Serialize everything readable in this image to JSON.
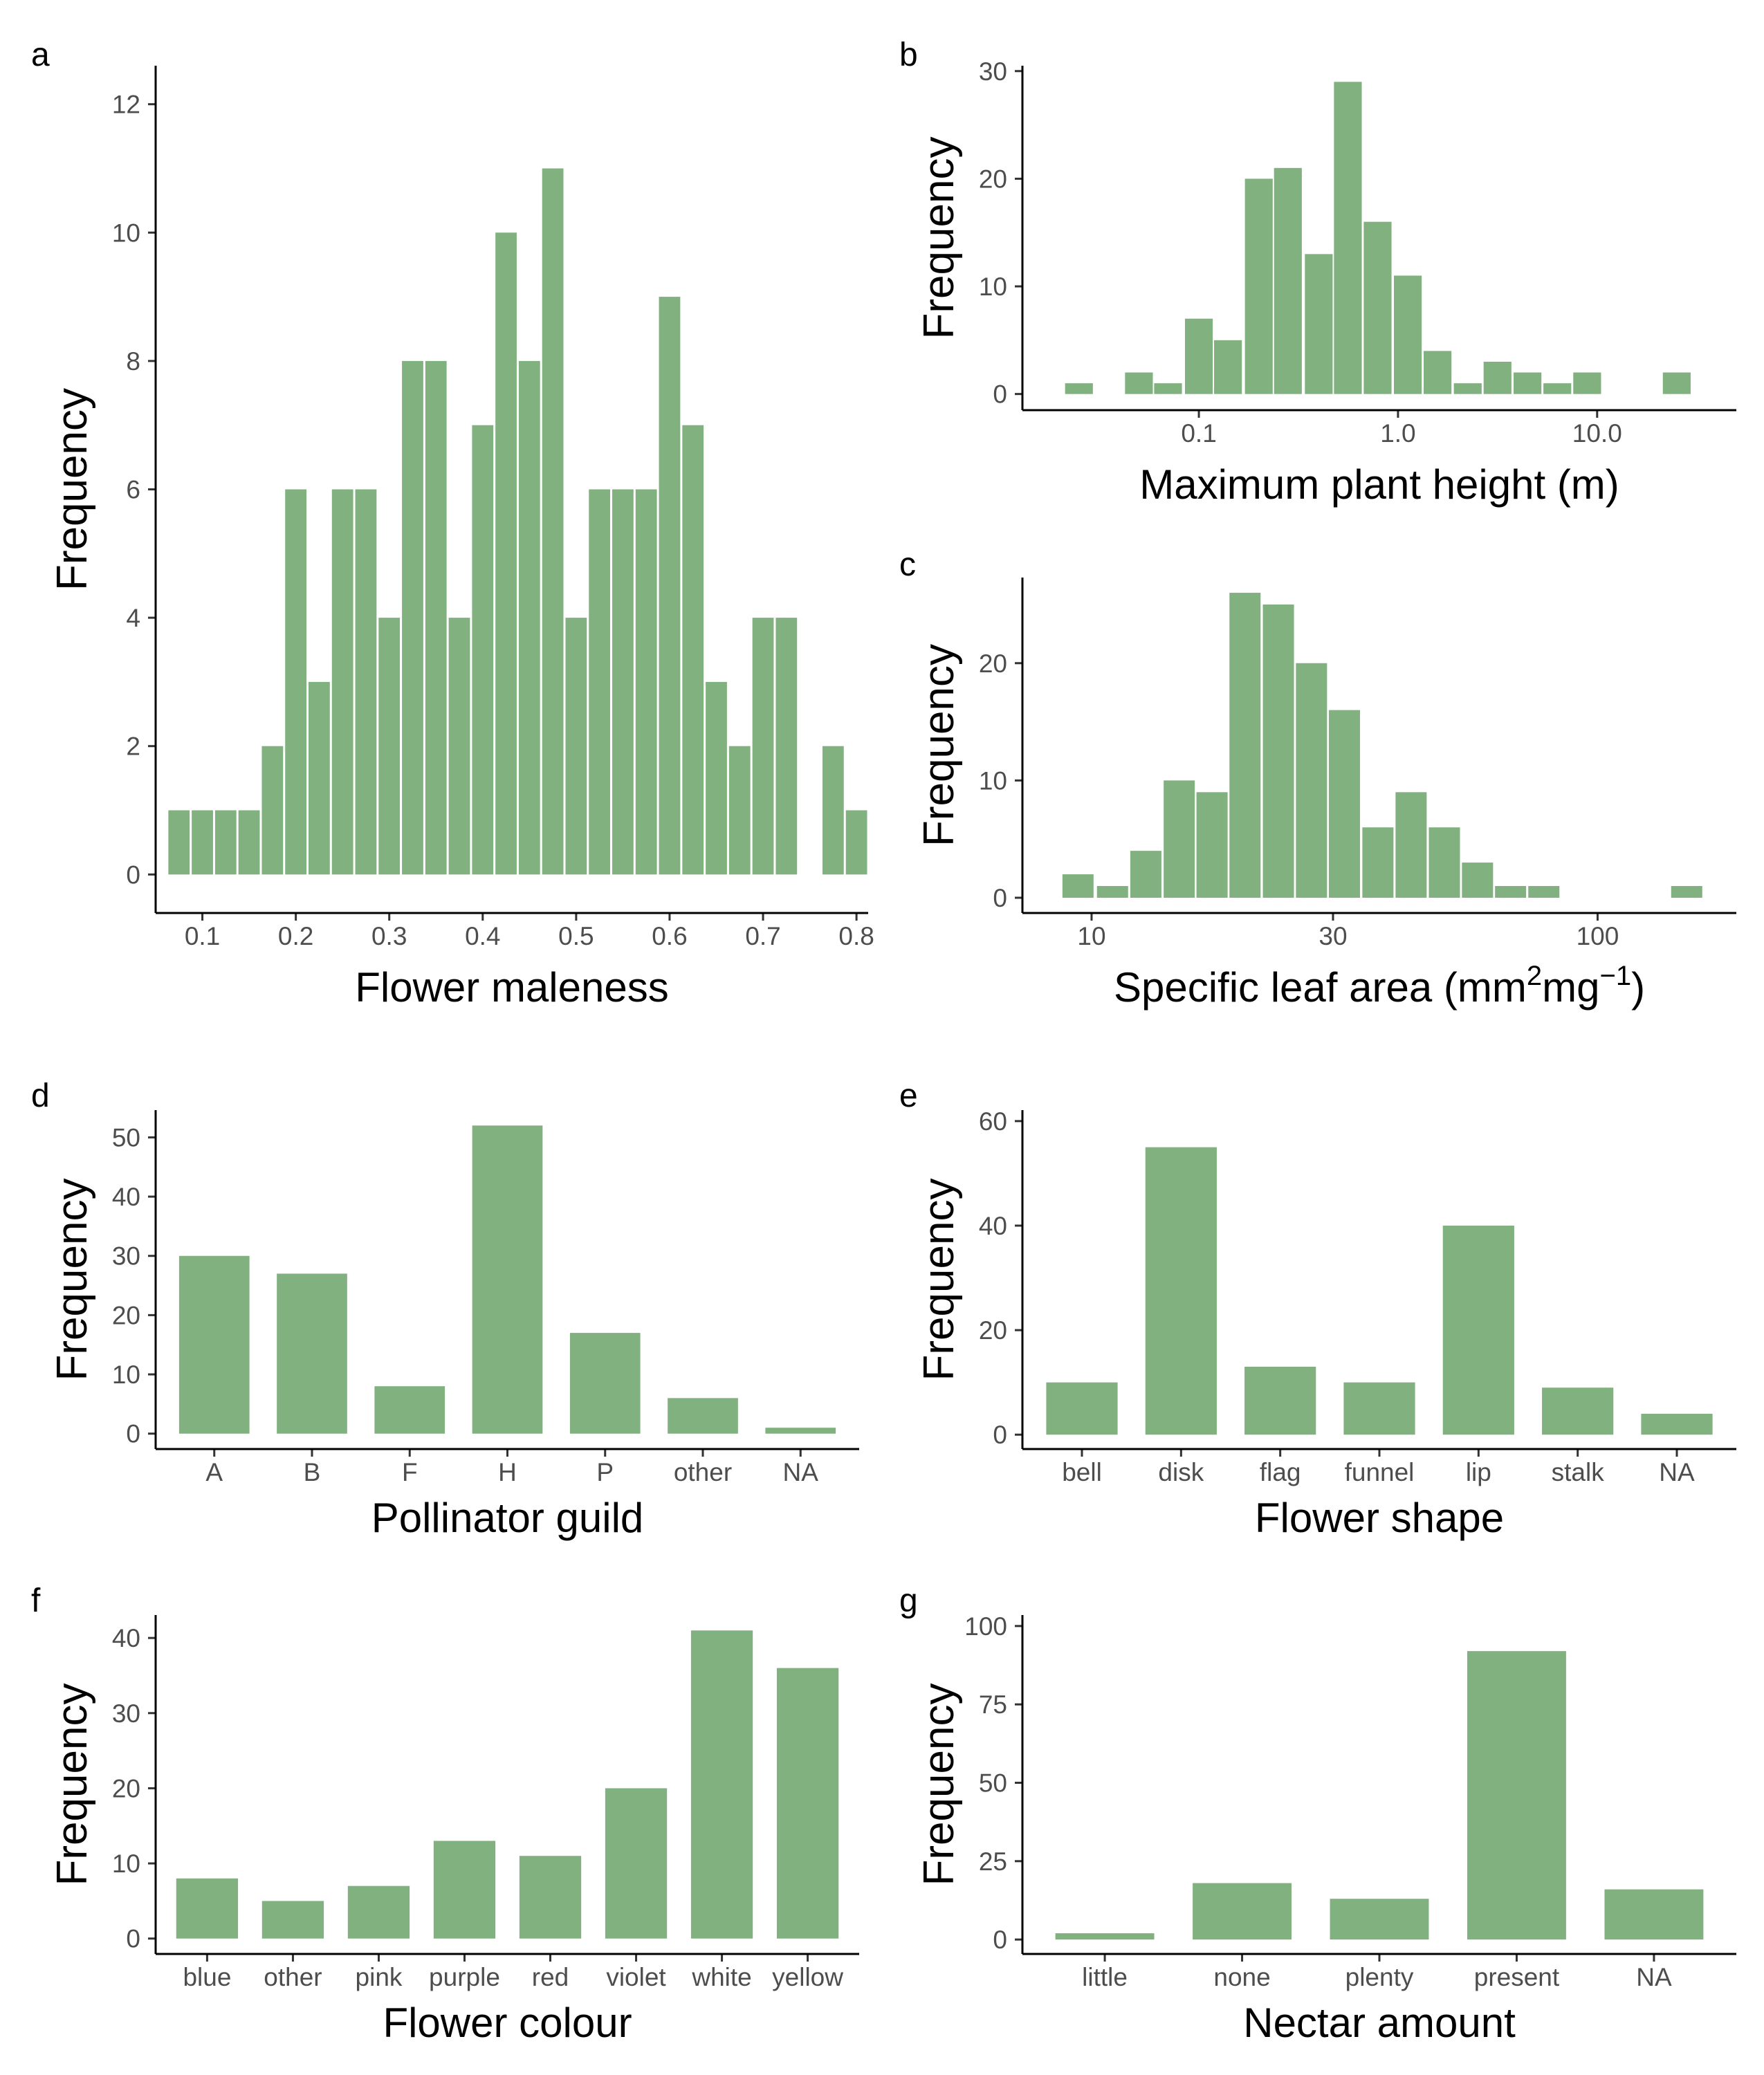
{
  "figure": {
    "bar_color": "#80B17F",
    "panels": [
      "a",
      "b",
      "c",
      "d",
      "e",
      "f",
      "g"
    ]
  },
  "chart_data": [
    {
      "id": "a",
      "type": "bar",
      "xlabel": "Flower maleness",
      "ylabel": "Frequency",
      "bin_width": 0.025,
      "x": [
        0.075,
        0.1,
        0.125,
        0.15,
        0.175,
        0.2,
        0.225,
        0.25,
        0.275,
        0.3,
        0.325,
        0.35,
        0.375,
        0.4,
        0.425,
        0.45,
        0.475,
        0.5,
        0.525,
        0.55,
        0.575,
        0.6,
        0.625,
        0.65,
        0.675,
        0.7,
        0.725,
        0.775,
        0.8
      ],
      "values": [
        1,
        1,
        1,
        1,
        2,
        6,
        3,
        6,
        6,
        4,
        8,
        8,
        4,
        7,
        10,
        8,
        11,
        4,
        6,
        6,
        6,
        9,
        7,
        3,
        2,
        4,
        4,
        2,
        1
      ],
      "xlim": [
        0.05,
        0.8125
      ],
      "ylim": [
        -0.6,
        12.6
      ],
      "xticks": [
        0.1,
        0.2,
        0.3,
        0.4,
        0.5,
        0.6,
        0.7,
        0.8
      ],
      "xtick_labels": [
        "0.1",
        "0.2",
        "0.3",
        "0.4",
        "0.5",
        "0.6",
        "0.7",
        "0.8"
      ],
      "yticks": [
        0,
        2,
        4,
        6,
        8,
        10,
        12
      ],
      "ytick_labels": [
        "0",
        "2",
        "4",
        "6",
        "8",
        "10",
        "12"
      ]
    },
    {
      "id": "b",
      "type": "bar",
      "x_scale": "log10",
      "xlabel": "Maximum plant height (m)",
      "ylabel": "Frequency",
      "x": [
        0.025,
        0.05,
        0.07,
        0.1,
        0.14,
        0.2,
        0.28,
        0.4,
        0.56,
        0.79,
        1.12,
        1.58,
        2.24,
        3.16,
        4.47,
        6.31,
        8.91,
        12.6,
        25.1
      ],
      "values": [
        1,
        2,
        1,
        7,
        5,
        20,
        21,
        13,
        29,
        16,
        11,
        4,
        1,
        3,
        2,
        1,
        2,
        0,
        2
      ],
      "bin_width_log10": 0.15,
      "xlim": [
        0.013,
        50
      ],
      "ylim": [
        -1.5,
        30.5
      ],
      "xticks": [
        0.1,
        1.0,
        10.0
      ],
      "xtick_labels": [
        "0.1",
        "1.0",
        "10.0"
      ],
      "yticks": [
        0,
        10,
        20,
        30
      ],
      "ytick_labels": [
        "0",
        "10",
        "20",
        "30"
      ]
    },
    {
      "id": "c",
      "type": "bar",
      "x_scale": "log10",
      "xlabel": "Specific leaf area",
      "xlabel_unit": [
        "(mm",
        "2",
        "mg",
        "−1",
        ")"
      ],
      "ylabel": "Frequency",
      "x": [
        9.4,
        11,
        12.8,
        14.9,
        17.3,
        20.1,
        23.4,
        27.2,
        31.6,
        36.8,
        42.8,
        49.8,
        57.9,
        67.3,
        78.3,
        150
      ],
      "values": [
        2,
        1,
        4,
        10,
        9,
        26,
        25,
        20,
        16,
        6,
        9,
        6,
        3,
        1,
        1,
        1
      ],
      "bin_width_log10": 0.0656,
      "xlim": [
        7.3,
        188
      ],
      "ylim": [
        -1.3,
        27.3
      ],
      "xticks": [
        10,
        30,
        100
      ],
      "xtick_labels": [
        "10",
        "30",
        "100"
      ],
      "yticks": [
        0,
        10,
        20
      ],
      "ytick_labels": [
        "0",
        "10",
        "20"
      ]
    },
    {
      "id": "d",
      "type": "bar",
      "xlabel": "Pollinator guild",
      "ylabel": "Frequency",
      "categories": [
        "A",
        "B",
        "F",
        "H",
        "P",
        "other",
        "NA"
      ],
      "values": [
        30,
        27,
        8,
        52,
        17,
        6,
        1
      ],
      "ylim": [
        -2.6,
        54.6
      ],
      "yticks": [
        0,
        10,
        20,
        30,
        40,
        50
      ],
      "ytick_labels": [
        "0",
        "10",
        "20",
        "30",
        "40",
        "50"
      ]
    },
    {
      "id": "e",
      "type": "bar",
      "xlabel": "Flower shape",
      "ylabel": "Frequency",
      "categories": [
        "bell",
        "disk",
        "flag",
        "funnel",
        "lip",
        "stalk",
        "NA"
      ],
      "values": [
        10,
        55,
        13,
        10,
        40,
        9,
        4
      ],
      "ylim": [
        -2.75,
        62.1
      ],
      "yticks": [
        0,
        20,
        40,
        60
      ],
      "ytick_labels": [
        "0",
        "20",
        "40",
        "60"
      ]
    },
    {
      "id": "f",
      "type": "bar",
      "xlabel": "Flower colour",
      "ylabel": "Frequency",
      "categories": [
        "blue",
        "other",
        "pink",
        "purple",
        "red",
        "violet",
        "white",
        "yellow"
      ],
      "values": [
        8,
        5,
        7,
        13,
        11,
        20,
        41,
        36
      ],
      "ylim": [
        -2.05,
        43.05
      ],
      "yticks": [
        0,
        10,
        20,
        30,
        40
      ],
      "ytick_labels": [
        "0",
        "10",
        "20",
        "30",
        "40"
      ]
    },
    {
      "id": "g",
      "type": "bar",
      "xlabel": "Nectar amount",
      "ylabel": "Frequency",
      "categories": [
        "little",
        "none",
        "plenty",
        "present",
        "NA"
      ],
      "values": [
        2,
        18,
        13,
        92,
        16
      ],
      "ylim": [
        -4.6,
        103.5
      ],
      "yticks": [
        0,
        25,
        50,
        75,
        100
      ],
      "ytick_labels": [
        "0",
        "25",
        "50",
        "75",
        "100"
      ]
    }
  ]
}
